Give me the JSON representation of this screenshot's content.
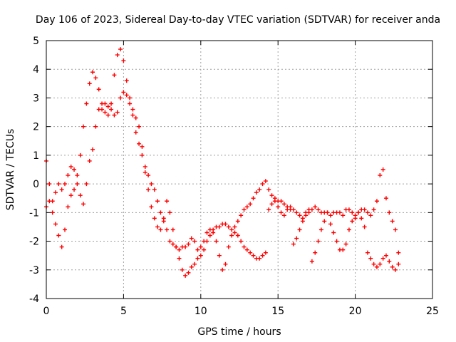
{
  "chart_data": {
    "type": "scatter",
    "title": "Day 106 of 2023, Sidereal Day-to-day VTEC variation (SDTVAR) for receiver anda",
    "xlabel": "GPS time / hours",
    "ylabel": "SDTVAR / TECUs",
    "xlim": [
      0,
      25
    ],
    "ylim": [
      -4,
      5
    ],
    "grid": true,
    "x_ticks": [
      "0",
      "5",
      "10",
      "15",
      "20",
      "25"
    ],
    "y_ticks": [
      "-4",
      "-3",
      "-2",
      "-1",
      "0",
      "1",
      "2",
      "3",
      "4",
      "5"
    ],
    "marker": "+",
    "marker_color": "#ff0000",
    "series": [
      {
        "name": "main-trace",
        "x": [
          0.0,
          0.2,
          0.4,
          0.6,
          0.8,
          1.0,
          1.2,
          1.4,
          1.6,
          1.8,
          2.0,
          2.2,
          2.4,
          2.6,
          2.8,
          3.0,
          3.2,
          3.4,
          3.6,
          3.8,
          4.0,
          4.2,
          4.4,
          4.6,
          4.8,
          5.0,
          5.2,
          5.4,
          5.6,
          5.8,
          6.0,
          6.2,
          6.4,
          6.6,
          6.8,
          7.0,
          7.2,
          7.4,
          7.6,
          7.8,
          8.0,
          8.2,
          8.4,
          8.6,
          8.8,
          9.0,
          9.2,
          9.4,
          9.6,
          9.8,
          10.0,
          10.2,
          10.4,
          10.6,
          10.8,
          11.0,
          11.2,
          11.4,
          11.6,
          11.8,
          12.0,
          12.2,
          12.4,
          12.6,
          12.8,
          13.0,
          13.2,
          13.4,
          13.6,
          13.8,
          14.0,
          14.2,
          14.4,
          14.6,
          14.8,
          15.0,
          15.2,
          15.4,
          15.6,
          15.8,
          16.0,
          16.2,
          16.4,
          16.6,
          16.8,
          17.0,
          17.2,
          17.4,
          17.6,
          17.8,
          18.0,
          18.2,
          18.4,
          18.6,
          18.8,
          19.0,
          19.2,
          19.4,
          19.6,
          19.8,
          20.0,
          20.2,
          20.4,
          20.6,
          20.8,
          21.0,
          21.2,
          21.4,
          21.6,
          21.8,
          22.0,
          22.2,
          22.4,
          22.6,
          22.8
        ],
        "y": [
          0.8,
          0.0,
          -0.6,
          -0.3,
          0.0,
          -0.2,
          0.0,
          0.3,
          0.6,
          0.5,
          0.3,
          1.0,
          2.0,
          2.8,
          3.5,
          3.9,
          3.7,
          3.3,
          2.6,
          2.5,
          2.4,
          2.8,
          3.8,
          4.5,
          4.7,
          4.3,
          3.6,
          3.0,
          2.6,
          2.3,
          2.0,
          1.3,
          0.6,
          0.3,
          0.0,
          -0.2,
          -0.6,
          -1.0,
          -1.3,
          -1.6,
          -2.0,
          -2.1,
          -2.2,
          -2.3,
          -2.2,
          -2.2,
          -2.1,
          -1.9,
          -2.0,
          -2.3,
          -2.5,
          -2.3,
          -2.0,
          -1.8,
          -1.6,
          -1.5,
          -1.5,
          -1.4,
          -1.4,
          -1.5,
          -1.6,
          -1.5,
          -1.3,
          -1.1,
          -0.9,
          -0.8,
          -0.7,
          -0.5,
          -0.3,
          -0.2,
          0.0,
          0.1,
          -0.2,
          -0.4,
          -0.5,
          -0.6,
          -0.6,
          -0.7,
          -0.8,
          -0.9,
          -0.9,
          -1.0,
          -1.1,
          -1.2,
          -1.1,
          -1.0,
          -0.9,
          -0.8,
          -0.9,
          -1.0,
          -1.0,
          -1.0,
          -1.1,
          -1.0,
          -1.0,
          -1.0,
          -1.1,
          -0.9,
          -0.9,
          -1.0,
          -1.1,
          -1.0,
          -0.9,
          -0.9,
          -1.0,
          -1.1,
          -0.9,
          -0.6,
          0.3,
          0.5,
          -0.5,
          -1.0,
          -1.3,
          -1.6,
          -2.4
        ]
      },
      {
        "name": "secondary-trace",
        "x": [
          0.0,
          0.2,
          0.4,
          0.6,
          0.8,
          1.0,
          1.2,
          1.4,
          1.6,
          1.8,
          2.0,
          2.2,
          2.4,
          2.6,
          2.8,
          3.0,
          3.2,
          3.4,
          3.6,
          3.8,
          4.0,
          4.2,
          4.4,
          4.6,
          4.8,
          5.0,
          5.2,
          5.4,
          5.6,
          5.8,
          6.0,
          6.2,
          6.4,
          6.6,
          6.8,
          7.0,
          7.2,
          7.4,
          7.6,
          7.8,
          8.0,
          8.2,
          8.4,
          8.6,
          8.8,
          9.0,
          9.2,
          9.4,
          9.6,
          9.8,
          10.0,
          10.2,
          10.4,
          10.6,
          10.8,
          11.0,
          11.2,
          11.4,
          11.6,
          11.8,
          12.0,
          12.2,
          12.4,
          12.6,
          12.8,
          13.0,
          13.2,
          13.4,
          13.6,
          13.8,
          14.0,
          14.2,
          14.4,
          14.6,
          14.8,
          15.0,
          15.2,
          15.4,
          15.6,
          15.8,
          16.0,
          16.2,
          16.4,
          16.6,
          16.8,
          17.0,
          17.2,
          17.4,
          17.6,
          17.8,
          18.0,
          18.2,
          18.4,
          18.6,
          18.8,
          19.0,
          19.2,
          19.4,
          19.6,
          19.8,
          20.0,
          20.2,
          20.4,
          20.6,
          20.8,
          21.0,
          21.2,
          21.4,
          21.6,
          21.8,
          22.0,
          22.2,
          22.4,
          22.6,
          22.8
        ],
        "y": [
          -0.8,
          -0.6,
          -1.0,
          -1.4,
          -1.8,
          -2.2,
          -1.6,
          -0.8,
          -0.4,
          -0.2,
          0.0,
          -0.4,
          -0.7,
          0.0,
          0.8,
          1.2,
          2.0,
          2.6,
          2.8,
          2.8,
          2.7,
          2.6,
          2.4,
          2.5,
          3.0,
          3.2,
          3.1,
          2.8,
          2.4,
          1.8,
          1.4,
          1.0,
          0.4,
          -0.2,
          -0.8,
          -1.2,
          -1.5,
          -1.6,
          -1.2,
          -0.6,
          -1.0,
          -1.6,
          -2.2,
          -2.6,
          -3.0,
          -3.2,
          -3.1,
          -2.9,
          -2.8,
          -2.6,
          -2.2,
          -2.0,
          -1.7,
          -1.6,
          -1.7,
          -2.0,
          -2.5,
          -3.0,
          -2.8,
          -2.2,
          -1.8,
          -1.7,
          -1.8,
          -2.0,
          -2.2,
          -2.3,
          -2.4,
          -2.5,
          -2.6,
          -2.6,
          -2.5,
          -2.4,
          -0.9,
          -0.7,
          -0.6,
          -0.8,
          -1.0,
          -1.1,
          -0.9,
          -0.8,
          -2.1,
          -1.9,
          -1.6,
          -1.3,
          -1.0,
          -0.9,
          -2.7,
          -2.4,
          -2.0,
          -1.6,
          -1.3,
          -1.0,
          -1.4,
          -1.7,
          -2.0,
          -2.3,
          -2.3,
          -2.1,
          -1.6,
          -1.3,
          -1.2,
          -1.0,
          -1.2,
          -1.5,
          -2.4,
          -2.6,
          -2.8,
          -2.9,
          -2.8,
          -2.6,
          -2.5,
          -2.7,
          -2.9,
          -3.0,
          -2.8
        ]
      }
    ]
  }
}
